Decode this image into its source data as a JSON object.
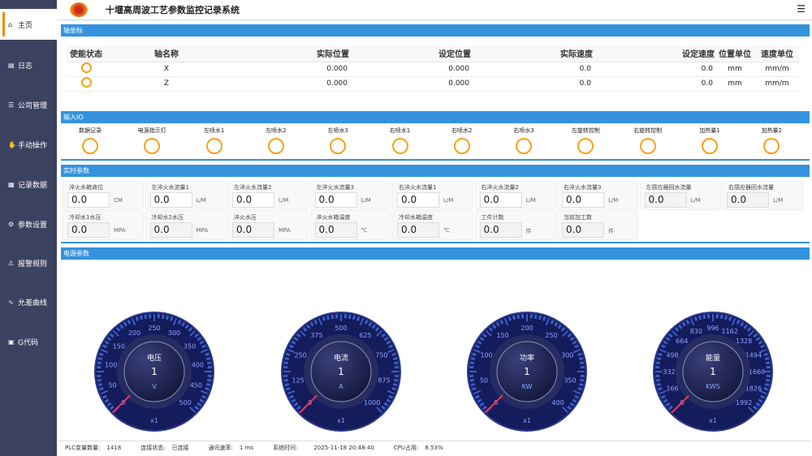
{
  "app": {
    "title": "十堰高周波工艺参数监控记录系统",
    "menu_icon": "hamburger-icon"
  },
  "sidebar": {
    "items": [
      {
        "label": "主页",
        "icon": "home-icon",
        "active": true
      },
      {
        "label": "日志",
        "icon": "log-icon"
      },
      {
        "label": "公司管理",
        "icon": "company-icon"
      },
      {
        "label": "手动操作",
        "icon": "manual-icon"
      },
      {
        "label": "记录数据",
        "icon": "record-icon"
      },
      {
        "label": "参数设置",
        "icon": "settings-icon"
      },
      {
        "label": "报警规则",
        "icon": "alarm-icon"
      },
      {
        "label": "允差曲线",
        "icon": "curve-icon"
      },
      {
        "label": "G代码",
        "icon": "gcode-icon"
      }
    ]
  },
  "axis": {
    "title": "轴坐标",
    "headers": [
      "使能状态",
      "轴名称",
      "实际位置",
      "设定位置",
      "实际速度",
      "设定速度",
      "位置单位",
      "速度单位"
    ],
    "rows": [
      [
        "X",
        "0.000",
        "0.000",
        "0.0",
        "0.0",
        "mm",
        "mm/m"
      ],
      [
        "Z",
        "0.000",
        "0.000",
        "0.0",
        "0.0",
        "mm",
        "mm/m"
      ]
    ]
  },
  "io": {
    "title": "输入IO",
    "items": [
      "数据记录",
      "电源指示灯",
      "左喷水1",
      "左喷水2",
      "左喷水3",
      "右喷水1",
      "右喷水2",
      "右喷水3",
      "左旋转控制",
      "右旋转控制",
      "加热量1",
      "加热量2"
    ]
  },
  "params": {
    "title": "实时参数",
    "items": [
      {
        "label": "淬火水箱液位",
        "value": "0.0",
        "unit": "CM"
      },
      {
        "label": "左淬火水流量1",
        "value": "0.0",
        "unit": "L/M"
      },
      {
        "label": "左淬火水流量2",
        "value": "0.0",
        "unit": "L/M"
      },
      {
        "label": "左淬火水流量3",
        "value": "0.0",
        "unit": "L/M"
      },
      {
        "label": "右淬火水流量1",
        "value": "0.0",
        "unit": "L/M"
      },
      {
        "label": "右淬火水流量2",
        "value": "0.0",
        "unit": "L/M"
      },
      {
        "label": "右淬火水流量3",
        "value": "0.0",
        "unit": "L/M"
      },
      {
        "label": "左感应器回水流量",
        "value": "0.0",
        "unit": "L/M"
      },
      {
        "label": "右感应器回水流量",
        "value": "0.0",
        "unit": "L/M"
      },
      {
        "label": "冷却水1水压",
        "value": "0.0",
        "unit": "MPA"
      },
      {
        "label": "冷却水2水压",
        "value": "0.0",
        "unit": "MPA"
      },
      {
        "label": "淬火水压",
        "value": "0.0",
        "unit": "MPA"
      },
      {
        "label": "淬火水箱温度",
        "value": "0.0",
        "unit": "℃"
      },
      {
        "label": "冷却水箱温度",
        "value": "0.0",
        "unit": "℃"
      },
      {
        "label": "工件计数",
        "value": "0.0",
        "unit": "件"
      },
      {
        "label": "当前加工数",
        "value": "0.0",
        "unit": "件"
      }
    ]
  },
  "power": {
    "title": "电源参数",
    "gauges": [
      {
        "label": "电压",
        "value": 1,
        "unit": "V",
        "multiplier": "x1",
        "min": 0,
        "max": 500,
        "ticks": [
          "0",
          "50",
          "100",
          "150",
          "200",
          "250",
          "300",
          "350",
          "400",
          "450",
          "500"
        ]
      },
      {
        "label": "电流",
        "value": 1,
        "unit": "A",
        "multiplier": "x1",
        "min": 0,
        "max": 1000,
        "ticks": [
          "0",
          "125",
          "250",
          "375",
          "500",
          "625",
          "750",
          "875",
          "1000"
        ]
      },
      {
        "label": "功率",
        "value": 1,
        "unit": "KW",
        "multiplier": "x1",
        "min": 0,
        "max": 400,
        "ticks": [
          "0",
          "50",
          "100",
          "150",
          "200",
          "250",
          "300",
          "350",
          "400"
        ]
      },
      {
        "label": "能量",
        "value": 1,
        "unit": "KWS",
        "multiplier": "x1",
        "min": 0,
        "max": 1992,
        "ticks": [
          "0",
          "166",
          "332",
          "498",
          "664",
          "830",
          "996",
          "1162",
          "1328",
          "1494",
          "1660",
          "1826",
          "1992"
        ]
      }
    ]
  },
  "footer": {
    "plc_label": "PLC变量数量:",
    "plc_value": "1418",
    "conn_label": "连接状态:",
    "conn_value": "已连接",
    "latency_label": "通讯速率:",
    "latency_value": "1 ms",
    "time_label": "系统时间:",
    "time_value": "2025-11-18 20:48:40",
    "cpu_label": "CPU占用:",
    "cpu_value": "8.53%"
  },
  "colors": {
    "accent": "#3593dd",
    "sidebar": "#3b4260",
    "indicator": "#f7a21b",
    "gauge": "#141c5c",
    "needle": "#ff3355"
  }
}
